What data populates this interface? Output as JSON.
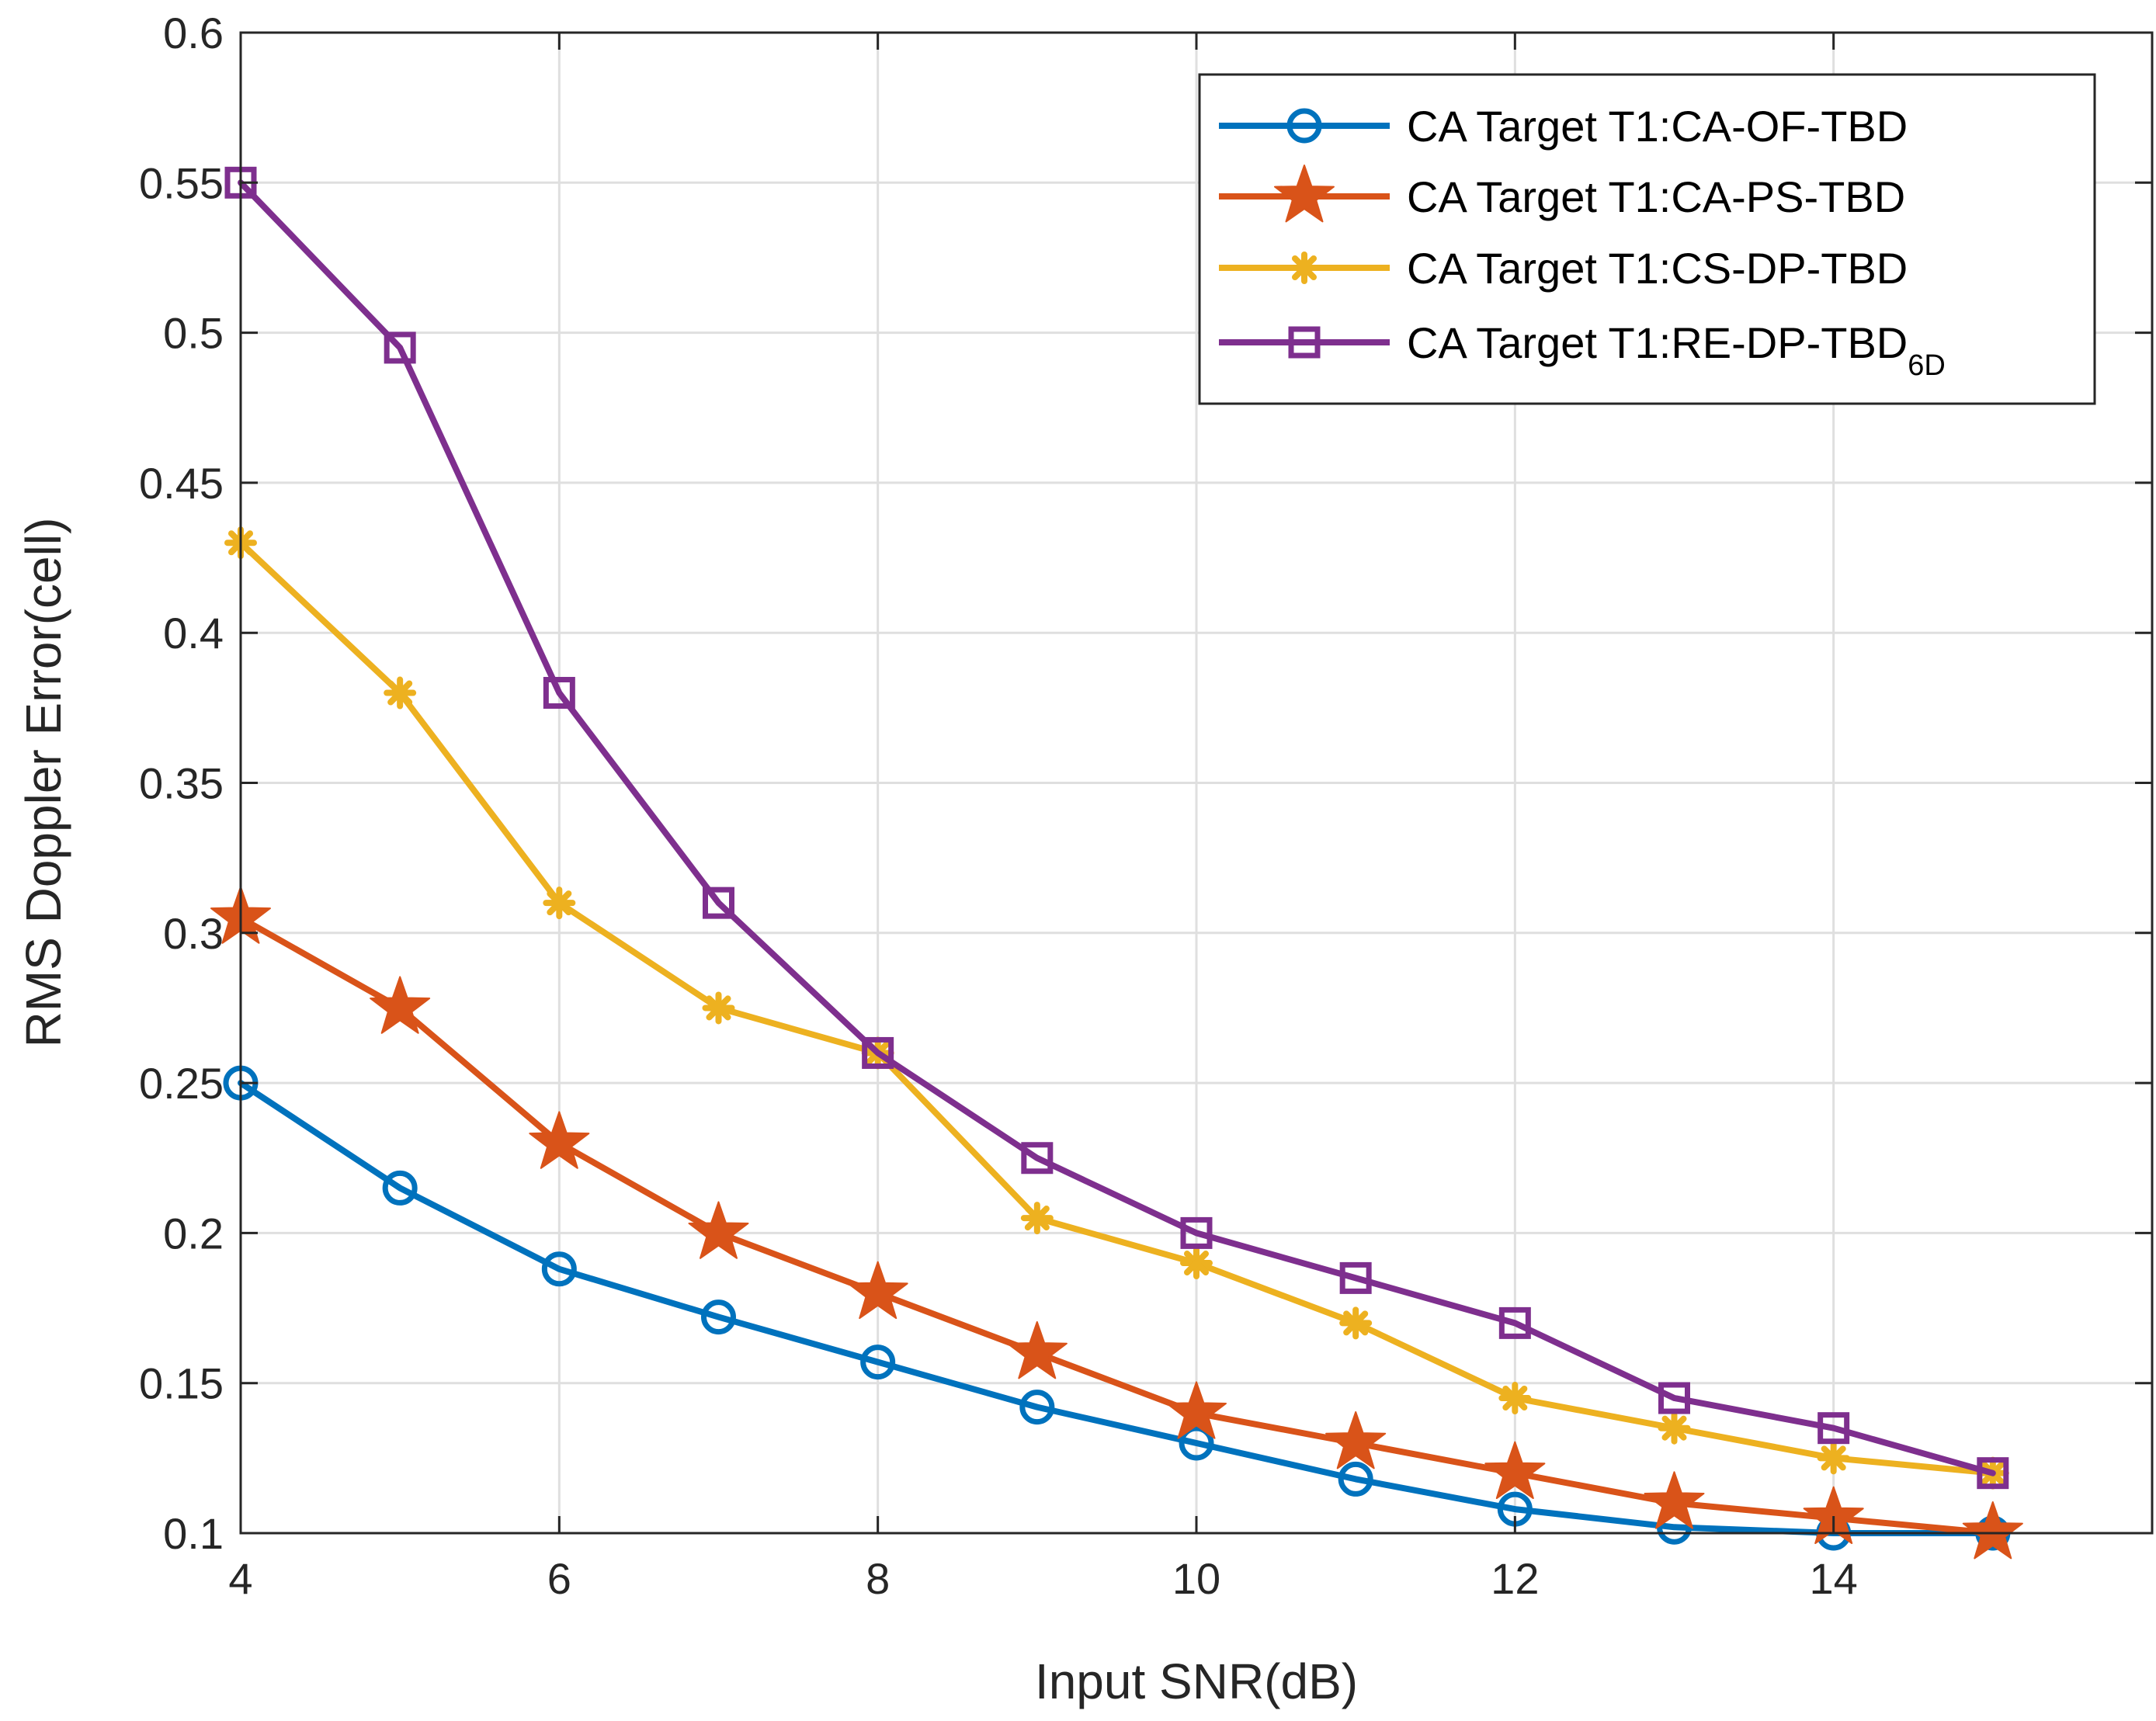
{
  "chart_data": {
    "type": "line",
    "title": "",
    "xlabel": "Input SNR(dB)",
    "ylabel": "RMS Doppler Error(cell)",
    "xlim": [
      4,
      16
    ],
    "ylim": [
      0.1,
      0.6
    ],
    "xticks": [
      4,
      6,
      8,
      10,
      12,
      14
    ],
    "xtick_labels": [
      "4",
      "6",
      "8",
      "10",
      "12",
      "14"
    ],
    "yticks": [
      0.1,
      0.15,
      0.2,
      0.25,
      0.3,
      0.35,
      0.4,
      0.45,
      0.5,
      0.55,
      0.6
    ],
    "ytick_labels": [
      "0.1",
      "0.15",
      "0.2",
      "0.25",
      "0.3",
      "0.35",
      "0.4",
      "0.45",
      "0.5",
      "0.55",
      "0.6"
    ],
    "grid": true,
    "legend_position": "top-right",
    "x": [
      4,
      5,
      6,
      7,
      8,
      9,
      10,
      11,
      12,
      13,
      14,
      15
    ],
    "series": [
      {
        "name": "CA Target T1:CA-OF-TBD",
        "label_main": "CA Target T1:CA-OF-TBD",
        "label_sub": "",
        "color": "#0072bd",
        "marker": "circle",
        "values": [
          0.25,
          0.215,
          0.188,
          0.172,
          0.157,
          0.142,
          0.13,
          0.118,
          0.108,
          0.102,
          0.1,
          0.1
        ]
      },
      {
        "name": "CA Target T1:CA-PS-TBD",
        "label_main": "CA Target T1:CA-PS-TBD",
        "label_sub": "",
        "color": "#d95319",
        "marker": "star",
        "values": [
          0.305,
          0.275,
          0.23,
          0.2,
          0.18,
          0.16,
          0.14,
          0.13,
          0.12,
          0.11,
          0.105,
          0.1
        ]
      },
      {
        "name": "CA Target T1:CS-DP-TBD",
        "label_main": "CA Target T1:CS-DP-TBD",
        "label_sub": "",
        "color": "#edb120",
        "marker": "asterisk",
        "values": [
          0.43,
          0.38,
          0.31,
          0.275,
          0.26,
          0.205,
          0.19,
          0.17,
          0.145,
          0.135,
          0.125,
          0.12
        ]
      },
      {
        "name": "CA Target T1:RE-DP-TBD6D",
        "label_main": "CA Target T1:RE-DP-TBD",
        "label_sub": "6D",
        "color": "#7e2f8e",
        "marker": "square",
        "values": [
          0.55,
          0.495,
          0.38,
          0.31,
          0.26,
          0.225,
          0.2,
          0.185,
          0.17,
          0.145,
          0.135,
          0.12
        ]
      }
    ]
  }
}
